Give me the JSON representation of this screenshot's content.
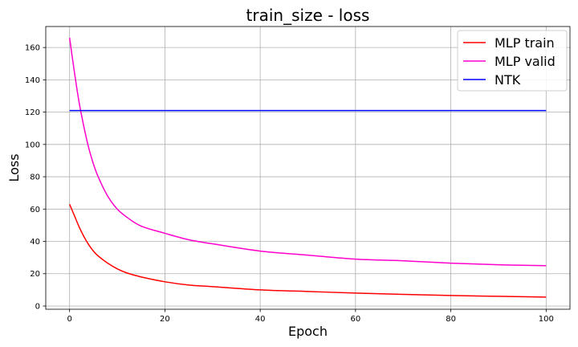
{
  "chart_data": {
    "type": "line",
    "title": "train_size - loss",
    "xlabel": "Epoch",
    "ylabel": "Loss",
    "xlim": [
      -5,
      105
    ],
    "ylim": [
      -2,
      173
    ],
    "xticks": [
      0,
      20,
      40,
      60,
      80,
      100
    ],
    "yticks": [
      0,
      20,
      40,
      60,
      80,
      100,
      120,
      140,
      160
    ],
    "grid": true,
    "legend_position": "top-right",
    "series": [
      {
        "name": "MLP train",
        "color": "#ff0000",
        "x": [
          0,
          1,
          2,
          3,
          4,
          5,
          6,
          8,
          10,
          12,
          15,
          20,
          25,
          30,
          40,
          50,
          60,
          70,
          80,
          90,
          100
        ],
        "values": [
          63,
          56,
          49,
          43,
          38,
          34,
          31,
          26.5,
          23,
          20.5,
          18,
          15,
          13,
          12,
          10,
          9,
          8,
          7.2,
          6.5,
          6,
          5.5
        ]
      },
      {
        "name": "MLP valid",
        "color": "#ff00cc",
        "x": [
          0,
          1,
          2,
          3,
          4,
          5,
          6,
          8,
          10,
          12,
          15,
          20,
          25,
          30,
          40,
          50,
          60,
          70,
          80,
          90,
          100
        ],
        "values": [
          166,
          145,
          126,
          111,
          98,
          88,
          80,
          68,
          60,
          55,
          49.5,
          45,
          41,
          38.5,
          34,
          31.5,
          29,
          28,
          26.5,
          25.5,
          25
        ]
      },
      {
        "name": "NTK",
        "color": "#0000ff",
        "x": [
          0,
          100
        ],
        "values": [
          121,
          121
        ]
      }
    ]
  }
}
